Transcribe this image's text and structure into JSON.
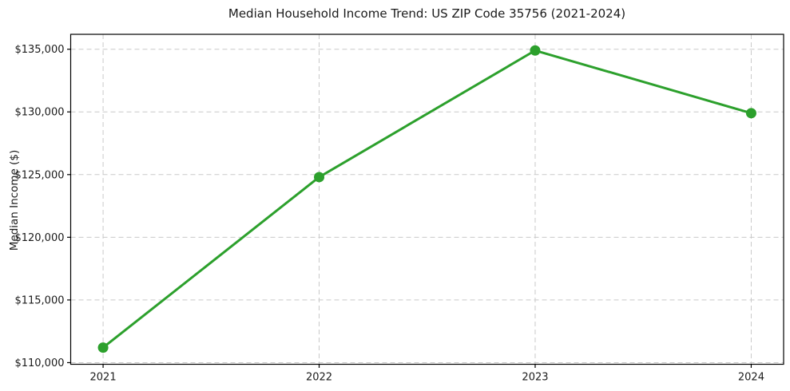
{
  "chart_data": {
    "type": "line",
    "title": "Median Household Income Trend: US ZIP Code 35756 (2021-2024)",
    "xlabel": "",
    "ylabel": "Median Income ($)",
    "x": [
      2021,
      2022,
      2023,
      2024
    ],
    "x_tick_labels": [
      "2021",
      "2022",
      "2023",
      "2024"
    ],
    "series": [
      {
        "name": "median-household-income",
        "values": [
          111200,
          124800,
          134900,
          129900
        ],
        "color": "#2ca02c"
      }
    ],
    "y_ticks": [
      110000,
      115000,
      120000,
      125000,
      130000,
      135000
    ],
    "y_tick_labels": [
      "$110,000",
      "$115,000",
      "$120,000",
      "$125,000",
      "$130,000",
      "$135,000"
    ],
    "xlim": [
      2020.85,
      2024.15
    ],
    "ylim": [
      109870,
      136190
    ],
    "grid": {
      "show": true,
      "axis": "both",
      "style": "dashed",
      "color": "#c9c9c9"
    },
    "legend_position": "none",
    "marker": "circle",
    "marker_size": 6.5,
    "line_width": 3,
    "colors": {
      "line": "#2ca02c",
      "grid": "#c9c9c9",
      "spine": "#000000",
      "text": "#1a1a1a",
      "background": "#ffffff"
    }
  }
}
